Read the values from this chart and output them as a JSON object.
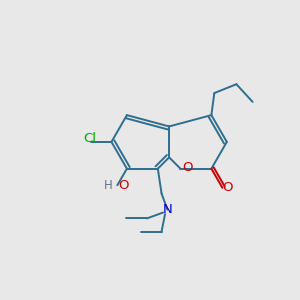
{
  "background_color": "#e8e8e8",
  "bond_color": "#2e6e8e",
  "atom_colors": {
    "Cl": "#00aa00",
    "O": "#cc0000",
    "N": "#0000cc",
    "H": "#607880"
  },
  "line_width": 1.4,
  "font_size": 9.5,
  "figsize": [
    3.0,
    3.0
  ],
  "dpi": 100,
  "xlim": [
    0,
    10
  ],
  "ylim": [
    0,
    10
  ]
}
